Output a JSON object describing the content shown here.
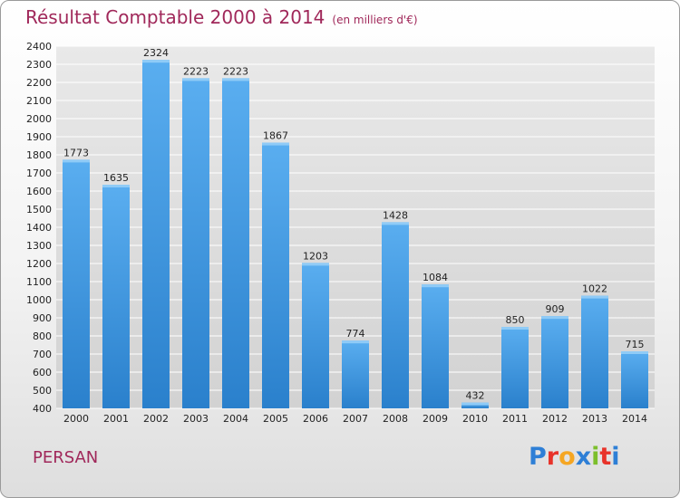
{
  "title": "Résultat Comptable 2000 à 2014",
  "subtitle": "(en milliers d'€)",
  "commune": "PERSAN",
  "logo": {
    "letters": [
      "P",
      "r",
      "o",
      "x",
      "i",
      "t",
      "i"
    ],
    "colors": [
      "#2e7fd6",
      "#e8332a",
      "#f5a623",
      "#2e7fd6",
      "#7cbf2c",
      "#e8332a",
      "#2e7fd6"
    ]
  },
  "colors": {
    "bar_light": "#5aaef0",
    "bar_dark": "#2a80cc",
    "title": "#a0285a",
    "grid": "#ffffff"
  },
  "chart_data": {
    "type": "bar",
    "categories": [
      "2000",
      "2001",
      "2002",
      "2003",
      "2004",
      "2005",
      "2006",
      "2007",
      "2008",
      "2009",
      "2010",
      "2011",
      "2012",
      "2013",
      "2014"
    ],
    "values": [
      1773,
      1635,
      2324,
      2223,
      2223,
      1867,
      1203,
      774,
      1428,
      1084,
      432,
      850,
      909,
      1022,
      715
    ],
    "ylim": [
      400,
      2400
    ],
    "yticks": [
      400,
      500,
      600,
      700,
      800,
      900,
      1000,
      1100,
      1200,
      1300,
      1400,
      1500,
      1600,
      1700,
      1800,
      1900,
      2000,
      2100,
      2200,
      2300,
      2400
    ],
    "grid": true
  }
}
